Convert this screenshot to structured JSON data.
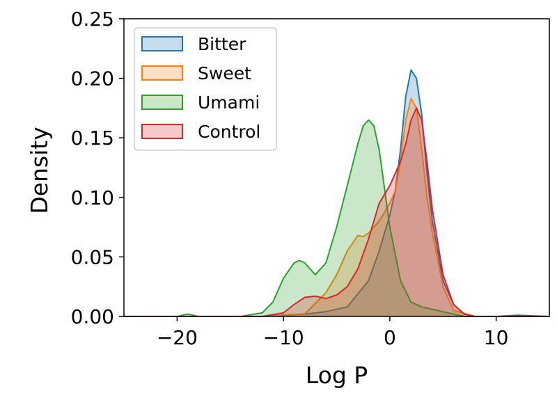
{
  "chart_data": {
    "type": "area",
    "title": "",
    "xlabel": "Log P",
    "ylabel": "Density",
    "xlim": [
      -25,
      15
    ],
    "ylim": [
      0,
      0.25
    ],
    "xticks": [
      -20,
      -10,
      0,
      10
    ],
    "xtick_labels": [
      "−20",
      "−10",
      "0",
      "10"
    ],
    "yticks": [
      0.0,
      0.05,
      0.1,
      0.15,
      0.2,
      0.25
    ],
    "ytick_labels": [
      "0.00",
      "0.05",
      "0.10",
      "0.15",
      "0.20",
      "0.25"
    ],
    "grid": false,
    "legend_position": "upper-left",
    "series": [
      {
        "name": "Bitter",
        "color": "#1f77b4",
        "x": [
          -25,
          -12,
          -10,
          -8,
          -6,
          -4,
          -2,
          -1,
          0,
          0.5,
          1,
          1.5,
          2,
          2.5,
          3,
          3.5,
          4,
          5,
          6,
          7,
          8,
          10,
          12,
          15
        ],
        "y": [
          0,
          0,
          0.001,
          0.002,
          0.004,
          0.008,
          0.03,
          0.055,
          0.085,
          0.105,
          0.14,
          0.185,
          0.207,
          0.2,
          0.17,
          0.12,
          0.08,
          0.03,
          0.01,
          0.002,
          0,
          0,
          0.001,
          0
        ]
      },
      {
        "name": "Sweet",
        "color": "#ff7f0e",
        "x": [
          -25,
          -12,
          -8,
          -6,
          -5,
          -4,
          -3,
          -2.5,
          -2,
          -1,
          0,
          0.5,
          1,
          1.5,
          2,
          2.5,
          3,
          3.5,
          4,
          5,
          6,
          8,
          15
        ],
        "y": [
          0,
          0,
          0.002,
          0.02,
          0.035,
          0.055,
          0.068,
          0.067,
          0.07,
          0.08,
          0.095,
          0.105,
          0.13,
          0.165,
          0.183,
          0.175,
          0.14,
          0.1,
          0.07,
          0.025,
          0.005,
          0,
          0
        ]
      },
      {
        "name": "Umami",
        "color": "#2ca02c",
        "x": [
          -25,
          -20,
          -19,
          -18,
          -14,
          -12,
          -11,
          -10,
          -9,
          -8.5,
          -8,
          -7,
          -6,
          -5,
          -4,
          -3,
          -2.5,
          -2,
          -1.5,
          -1,
          0,
          1,
          2,
          3,
          4,
          5,
          6,
          7,
          15
        ],
        "y": [
          0,
          0,
          0.002,
          0,
          0,
          0.003,
          0.012,
          0.032,
          0.045,
          0.047,
          0.045,
          0.035,
          0.045,
          0.075,
          0.11,
          0.145,
          0.16,
          0.165,
          0.16,
          0.14,
          0.075,
          0.03,
          0.012,
          0.008,
          0.006,
          0.004,
          0.002,
          0,
          0
        ]
      },
      {
        "name": "Control",
        "color": "#d62728",
        "x": [
          -25,
          -12,
          -10,
          -9,
          -8,
          -7,
          -6,
          -5,
          -4,
          -3,
          -2,
          -1,
          0,
          1,
          1.5,
          2,
          2.5,
          3,
          3.5,
          4,
          5,
          6,
          7,
          8,
          15
        ],
        "y": [
          0,
          0,
          0.003,
          0.01,
          0.016,
          0.017,
          0.015,
          0.018,
          0.025,
          0.04,
          0.065,
          0.095,
          0.11,
          0.13,
          0.145,
          0.165,
          0.175,
          0.165,
          0.13,
          0.09,
          0.035,
          0.01,
          0.002,
          0,
          0
        ]
      }
    ]
  }
}
